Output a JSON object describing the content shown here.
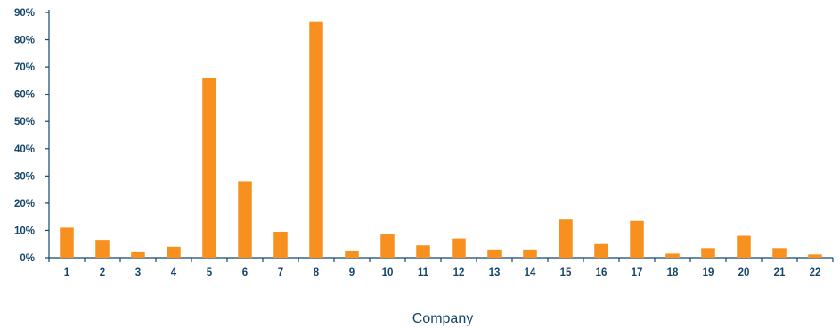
{
  "chart_data": {
    "type": "bar",
    "categories": [
      "1",
      "2",
      "3",
      "4",
      "5",
      "6",
      "7",
      "8",
      "9",
      "10",
      "11",
      "12",
      "13",
      "14",
      "15",
      "16",
      "17",
      "18",
      "19",
      "20",
      "21",
      "22"
    ],
    "values": [
      11,
      6.5,
      2,
      4,
      66,
      28,
      9.5,
      86.5,
      2.5,
      8.5,
      4.5,
      7,
      3,
      3,
      14,
      5,
      13.5,
      1.5,
      3.5,
      8,
      3.5,
      1.2
    ],
    "yticks": [
      "0%",
      "10%",
      "20%",
      "30%",
      "40%",
      "50%",
      "60%",
      "70%",
      "80%",
      "90%"
    ],
    "ylim": [
      0,
      90
    ],
    "xlabel": "Company",
    "ylabel": "",
    "grid": false,
    "bar_color": "#f7901e",
    "axis_color": "#14456b"
  }
}
